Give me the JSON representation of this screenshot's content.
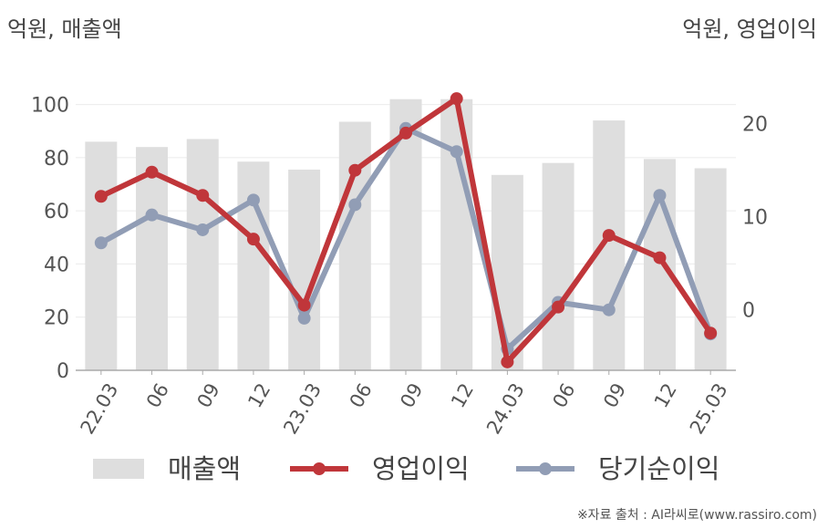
{
  "left_unit_label": "억원, 매출액",
  "right_unit_label": "억원, 영업이익",
  "source": "※자료 출처 : AI라씨로(www.rassiro.com)",
  "chart_data": {
    "type": "bar+line",
    "categories": [
      "22.03",
      "06",
      "09",
      "12",
      "23.03",
      "06",
      "09",
      "12",
      "24.03",
      "06",
      "09",
      "12",
      "25.03"
    ],
    "left_axis": {
      "ylim": [
        0,
        105
      ],
      "ticks": [
        0,
        20,
        40,
        60,
        80,
        100
      ]
    },
    "right_axis": {
      "ylim": [
        -6.5,
        23.5
      ],
      "ticks": [
        0,
        10,
        20
      ]
    },
    "bar_series": {
      "name": "매출액",
      "axis": "left",
      "color": "#dedede",
      "values": [
        86,
        84,
        87,
        78.5,
        75.5,
        93.5,
        102,
        102,
        73.5,
        78,
        94,
        79.5,
        76
      ]
    },
    "line_series": [
      {
        "name": "영업이익",
        "axis": "right",
        "color": "#c0363a",
        "values": [
          12.2,
          14.8,
          12.3,
          7.6,
          0.5,
          15,
          19,
          22.7,
          -5.6,
          0.3,
          8,
          5.6,
          -2.5
        ]
      },
      {
        "name": "당기순이익",
        "axis": "right",
        "color": "#919db5",
        "values": [
          7.2,
          10.2,
          8.6,
          11.8,
          -0.9,
          11.3,
          19.5,
          17,
          -4.2,
          0.8,
          0,
          12.3,
          -2.6
        ]
      }
    ],
    "grid": true,
    "legend": "bottom"
  }
}
